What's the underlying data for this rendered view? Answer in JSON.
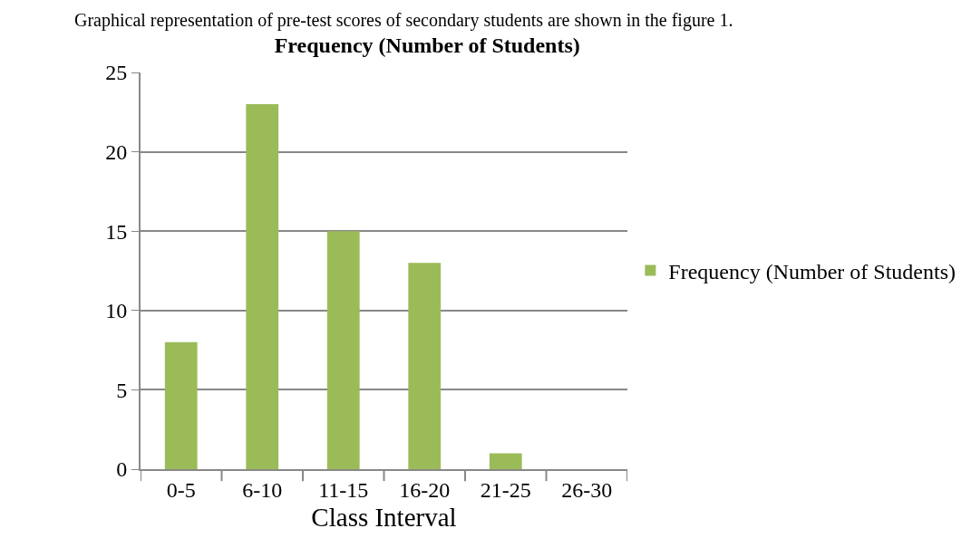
{
  "chart_data": {
    "type": "bar",
    "title": "Frequency (Number of Students)",
    "xlabel": "Class Interval",
    "annotations": [
      "Graphical representation of pre-test scores of secondary students are shown in the figure 1."
    ],
    "categories": [
      "0-5",
      "6-10",
      "11-15",
      "16-20",
      "21-25",
      "26-30"
    ],
    "series": [
      {
        "name": "Frequency (Number of Students)",
        "color": "#9bbb59",
        "values": [
          8,
          23,
          15,
          13,
          1,
          0
        ]
      }
    ],
    "ylim": [
      0,
      25
    ],
    "yticks": [
      0,
      5,
      10,
      15,
      20,
      25
    ],
    "grid": "y",
    "legend": "right"
  }
}
